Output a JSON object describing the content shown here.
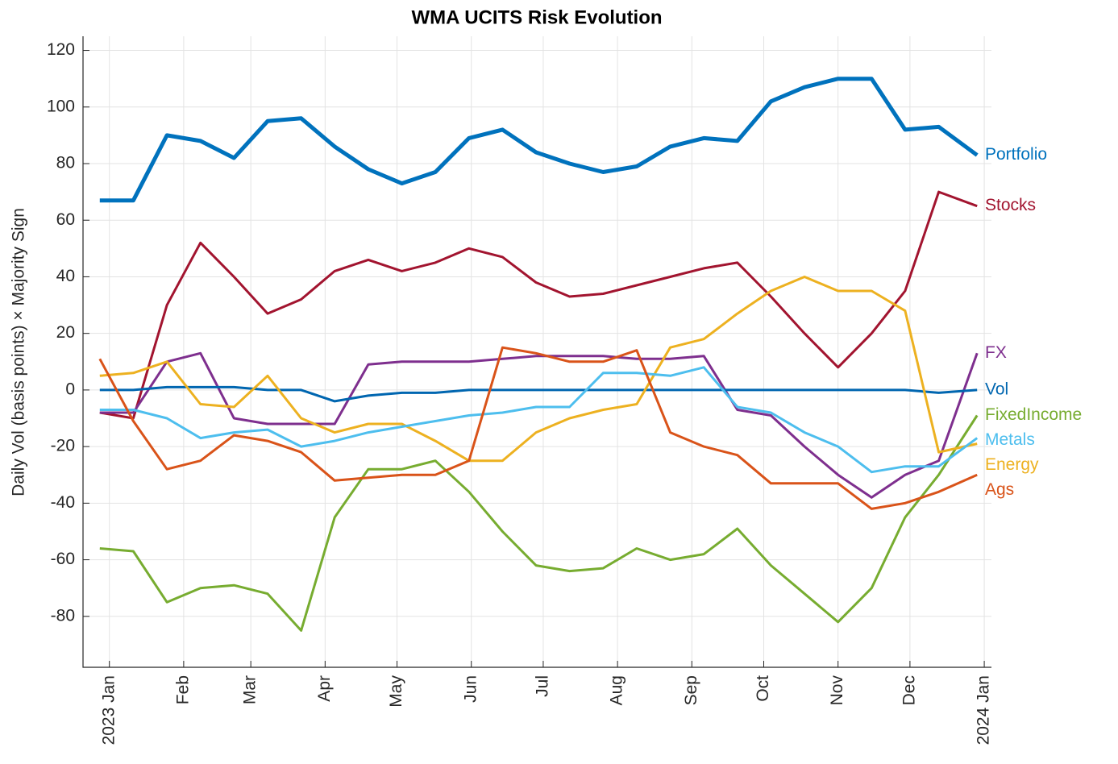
{
  "chart_data": {
    "type": "line",
    "title": "WMA UCITS Risk Evolution",
    "y_label": "Daily Vol (basis points) × Majority Sign",
    "xlim": [
      -11,
      368
    ],
    "ylim": [
      -98,
      125
    ],
    "xticks": [
      {
        "value": 0,
        "label": "2023 Jan"
      },
      {
        "value": 31,
        "label": "Feb"
      },
      {
        "value": 59,
        "label": "Mar"
      },
      {
        "value": 90,
        "label": "Apr"
      },
      {
        "value": 120,
        "label": "May"
      },
      {
        "value": 151,
        "label": "Jun"
      },
      {
        "value": 181,
        "label": "Jul"
      },
      {
        "value": 212,
        "label": "Aug"
      },
      {
        "value": 243,
        "label": "Sep"
      },
      {
        "value": 273,
        "label": "Oct"
      },
      {
        "value": 304,
        "label": "Nov"
      },
      {
        "value": 334,
        "label": "Dec"
      },
      {
        "value": 365,
        "label": "2024 Jan"
      }
    ],
    "yticks": [
      -80,
      -60,
      -40,
      -20,
      0,
      20,
      40,
      60,
      80,
      100,
      120
    ],
    "grid": true,
    "x": [
      -4,
      10,
      24,
      38,
      52,
      66,
      80,
      94,
      108,
      122,
      136,
      150,
      164,
      178,
      192,
      206,
      220,
      234,
      248,
      262,
      276,
      290,
      304,
      318,
      332,
      346,
      362
    ],
    "series": [
      {
        "name": "Portfolio",
        "color": "#0072BD",
        "values": [
          67,
          67,
          90,
          88,
          82,
          95,
          96,
          86,
          78,
          73,
          77,
          89,
          92,
          84,
          80,
          77,
          79,
          86,
          89,
          88,
          102,
          107,
          110,
          110,
          92,
          93,
          83
        ]
      },
      {
        "name": "Stocks",
        "color": "#A2142F",
        "values": [
          -8,
          -10,
          30,
          52,
          40,
          27,
          32,
          42,
          46,
          42,
          45,
          50,
          47,
          38,
          33,
          34,
          37,
          40,
          43,
          45,
          33,
          20,
          8,
          20,
          35,
          70,
          65
        ]
      },
      {
        "name": "FX",
        "color": "#7E2F8E",
        "values": [
          -8,
          -8,
          10,
          13,
          -10,
          -12,
          -12,
          -12,
          9,
          10,
          10,
          10,
          11,
          12,
          12,
          12,
          11,
          11,
          12,
          -7,
          -9,
          -20,
          -30,
          -38,
          -30,
          -25,
          13
        ]
      },
      {
        "name": "Vol",
        "color": "#0066B0",
        "values": [
          0,
          0,
          1,
          1,
          1,
          0,
          0,
          -4,
          -2,
          -1,
          -1,
          0,
          0,
          0,
          0,
          0,
          0,
          0,
          0,
          0,
          0,
          0,
          0,
          0,
          0,
          -1,
          0
        ]
      },
      {
        "name": "FixedIncome",
        "color": "#77AC30",
        "values": [
          -56,
          -57,
          -75,
          -70,
          -69,
          -72,
          -85,
          -45,
          -28,
          -28,
          -25,
          -36,
          -50,
          -62,
          -64,
          -63,
          -56,
          -60,
          -58,
          -49,
          -62,
          -72,
          -82,
          -70,
          -45,
          -30,
          -9
        ]
      },
      {
        "name": "Energy",
        "color": "#EDB120",
        "values": [
          5,
          6,
          10,
          -5,
          -6,
          5,
          -10,
          -15,
          -12,
          -12,
          -18,
          -25,
          -25,
          -15,
          -10,
          -7,
          -5,
          15,
          18,
          27,
          35,
          40,
          35,
          35,
          28,
          -22,
          -19
        ]
      },
      {
        "name": "Metals",
        "color": "#4DBEEE",
        "values": [
          -7,
          -7,
          -10,
          -17,
          -15,
          -14,
          -20,
          -18,
          -15,
          -13,
          -11,
          -9,
          -8,
          -6,
          -6,
          6,
          6,
          5,
          8,
          -6,
          -8,
          -15,
          -20,
          -29,
          -27,
          -27,
          -17
        ]
      },
      {
        "name": "Ags",
        "color": "#D95319",
        "values": [
          11,
          -11,
          -28,
          -25,
          -16,
          -18,
          -22,
          -32,
          -31,
          -30,
          -30,
          -25,
          15,
          13,
          10,
          10,
          14,
          -15,
          -20,
          -23,
          -33,
          -33,
          -33,
          -42,
          -40,
          -36,
          -30
        ]
      }
    ]
  }
}
